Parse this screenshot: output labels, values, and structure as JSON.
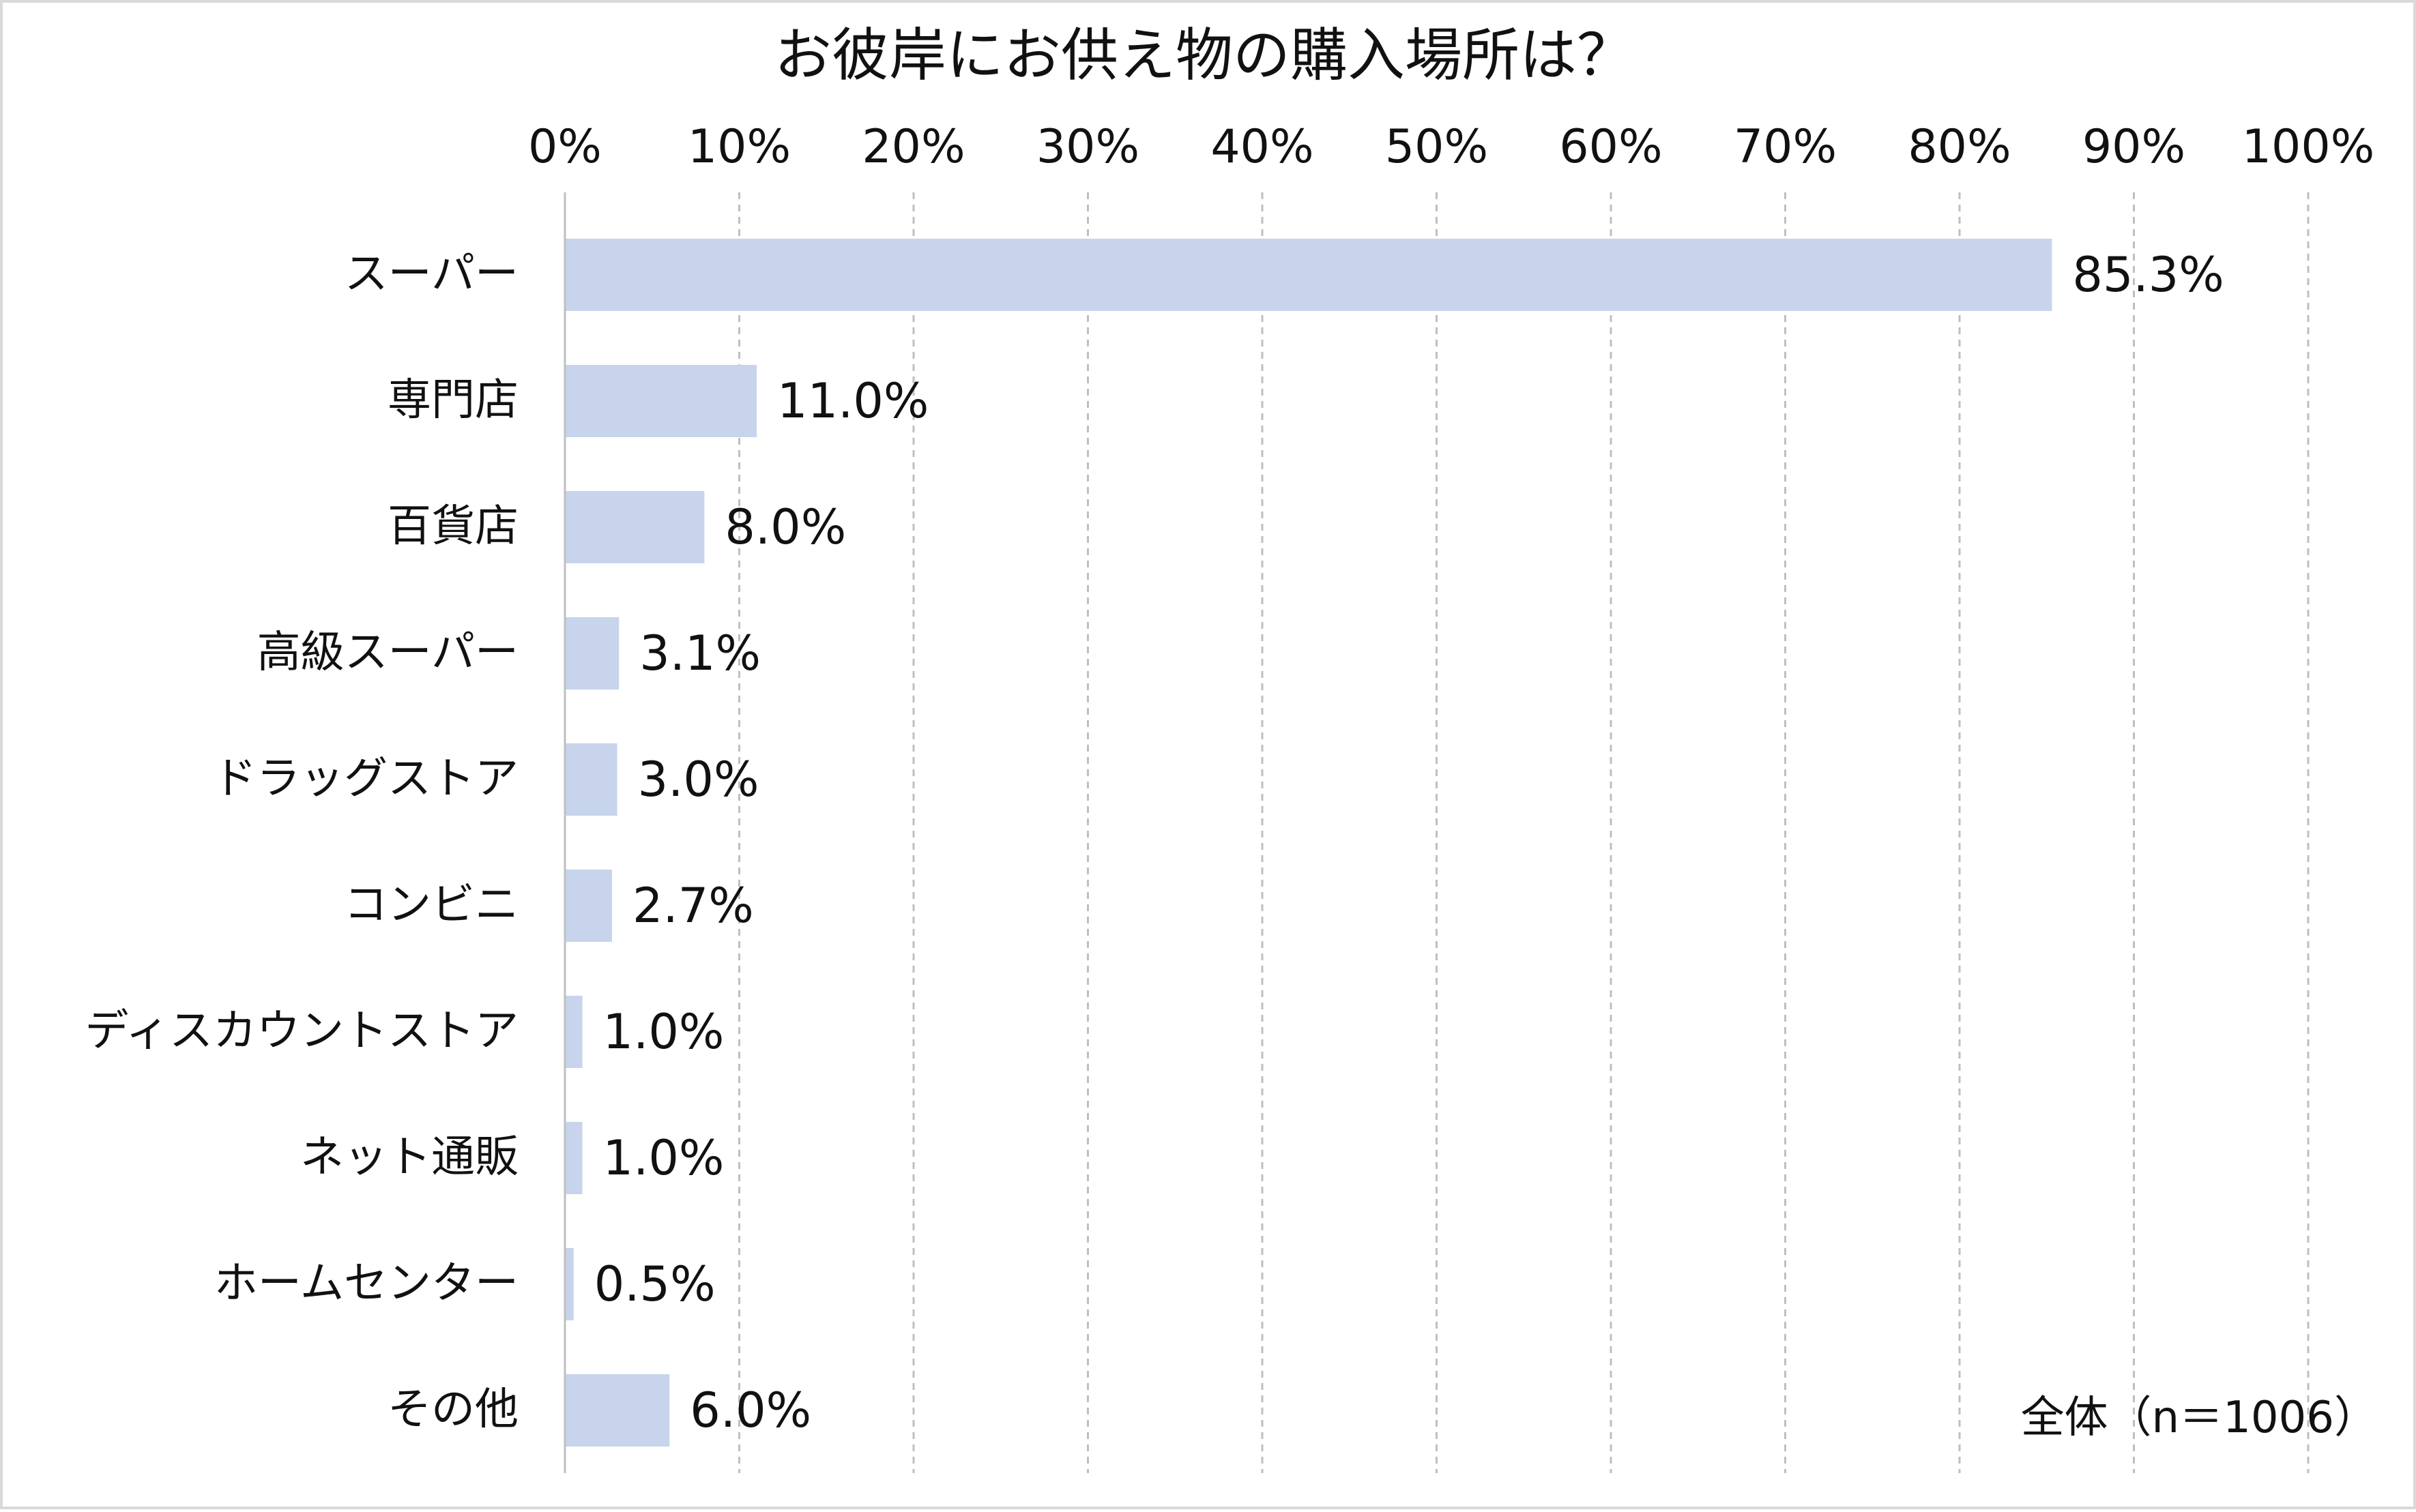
{
  "chart_data": {
    "type": "bar",
    "orientation": "horizontal",
    "title": "お彼岸にお供え物の購入場所は？",
    "xlim": [
      0,
      100
    ],
    "x_ticks": [
      "0%",
      "10%",
      "20%",
      "30%",
      "40%",
      "50%",
      "60%",
      "70%",
      "80%",
      "90%",
      "100%"
    ],
    "grid": true,
    "categories": [
      "スーパー",
      "専門店",
      "百貨店",
      "高級スーパー",
      "ドラッグストア",
      "コンビニ",
      "ディスカウントストア",
      "ネット通販",
      "ホームセンター",
      "その他"
    ],
    "values": [
      85.3,
      11.0,
      8.0,
      3.1,
      3.0,
      2.7,
      1.0,
      1.0,
      0.5,
      6.0
    ],
    "value_labels": [
      "85.3%",
      "11.0%",
      "8.0%",
      "3.1%",
      "3.0%",
      "2.7%",
      "1.0%",
      "1.0%",
      "0.5%",
      "6.0%"
    ],
    "bar_color": "#c7d4ec",
    "note": "全体（n＝1006）"
  }
}
